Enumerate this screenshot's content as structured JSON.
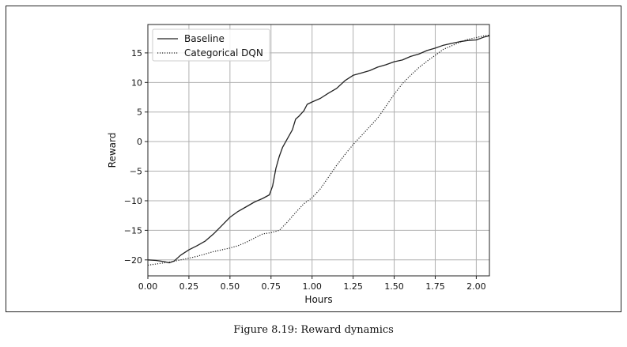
{
  "chart_data": {
    "type": "line",
    "title": "",
    "xlabel": "Hours",
    "ylabel": "Reward",
    "xlim": [
      0.0,
      2.08
    ],
    "ylim": [
      -22.7,
      19.8
    ],
    "xticks": [
      0.0,
      0.25,
      0.5,
      0.75,
      1.0,
      1.25,
      1.5,
      1.75,
      2.0
    ],
    "xtick_labels": [
      "0.00",
      "0.25",
      "0.50",
      "0.75",
      "1.00",
      "1.25",
      "1.50",
      "1.75",
      "2.00"
    ],
    "yticks": [
      15,
      10,
      5,
      0,
      -5,
      -10,
      -15,
      -20
    ],
    "ytick_labels": [
      "15",
      "10",
      "5",
      "0",
      "−5",
      "−10",
      "−15",
      "−20"
    ],
    "grid": true,
    "legend_position": "top-left",
    "series": [
      {
        "name": "Baseline",
        "style": "solid",
        "color": "#222222",
        "x": [
          0.0,
          0.05,
          0.1,
          0.13,
          0.16,
          0.2,
          0.25,
          0.3,
          0.35,
          0.4,
          0.45,
          0.5,
          0.55,
          0.6,
          0.65,
          0.7,
          0.74,
          0.76,
          0.78,
          0.8,
          0.82,
          0.85,
          0.88,
          0.9,
          0.92,
          0.95,
          0.97,
          1.0,
          1.05,
          1.1,
          1.15,
          1.2,
          1.25,
          1.3,
          1.35,
          1.4,
          1.45,
          1.5,
          1.55,
          1.6,
          1.65,
          1.7,
          1.75,
          1.8,
          1.85,
          1.9,
          1.95,
          2.0,
          2.05,
          2.08
        ],
        "y": [
          -20.0,
          -20.1,
          -20.3,
          -20.5,
          -20.2,
          -19.2,
          -18.3,
          -17.6,
          -16.8,
          -15.6,
          -14.2,
          -12.8,
          -11.8,
          -11.0,
          -10.2,
          -9.6,
          -9.0,
          -7.5,
          -4.5,
          -2.5,
          -1.0,
          0.5,
          2.0,
          3.8,
          4.3,
          5.2,
          6.3,
          6.7,
          7.3,
          8.2,
          9.0,
          10.3,
          11.2,
          11.6,
          12.0,
          12.6,
          13.0,
          13.5,
          13.8,
          14.4,
          14.8,
          15.4,
          15.8,
          16.3,
          16.6,
          16.9,
          17.1,
          17.2,
          17.7,
          17.9
        ]
      },
      {
        "name": "Categorical DQN",
        "style": "dotted",
        "color": "#222222",
        "x": [
          0.0,
          0.05,
          0.1,
          0.15,
          0.2,
          0.25,
          0.3,
          0.35,
          0.4,
          0.45,
          0.5,
          0.55,
          0.6,
          0.65,
          0.7,
          0.75,
          0.8,
          0.85,
          0.9,
          0.95,
          1.0,
          1.05,
          1.1,
          1.15,
          1.2,
          1.25,
          1.3,
          1.35,
          1.4,
          1.45,
          1.5,
          1.55,
          1.6,
          1.65,
          1.7,
          1.75,
          1.8,
          1.85,
          1.9,
          1.95,
          2.0,
          2.05,
          2.08
        ],
        "y": [
          -20.9,
          -20.7,
          -20.5,
          -20.3,
          -20.0,
          -19.7,
          -19.4,
          -19.0,
          -18.6,
          -18.3,
          -18.0,
          -17.6,
          -17.0,
          -16.3,
          -15.6,
          -15.4,
          -15.0,
          -13.6,
          -12.0,
          -10.5,
          -9.5,
          -8.0,
          -6.0,
          -4.0,
          -2.2,
          -0.5,
          1.0,
          2.5,
          4.0,
          6.0,
          8.0,
          9.8,
          11.2,
          12.5,
          13.6,
          14.6,
          15.6,
          16.2,
          16.8,
          17.3,
          17.6,
          17.9,
          18.0
        ]
      }
    ]
  },
  "figure": {
    "caption": "Figure 8.19: Reward dynamics"
  }
}
